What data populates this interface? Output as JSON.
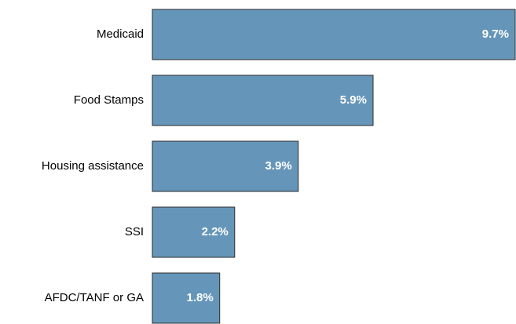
{
  "chart_data": {
    "type": "bar",
    "orientation": "horizontal",
    "categories": [
      "Medicaid",
      "Food Stamps",
      "Housing assistance",
      "SSI",
      "AFDC/TANF or GA"
    ],
    "values": [
      9.7,
      5.9,
      3.9,
      2.2,
      1.8
    ],
    "value_labels": [
      "9.7%",
      "5.9%",
      "3.9%",
      "2.2%",
      "1.8%"
    ],
    "color": "#6596b9"
  }
}
